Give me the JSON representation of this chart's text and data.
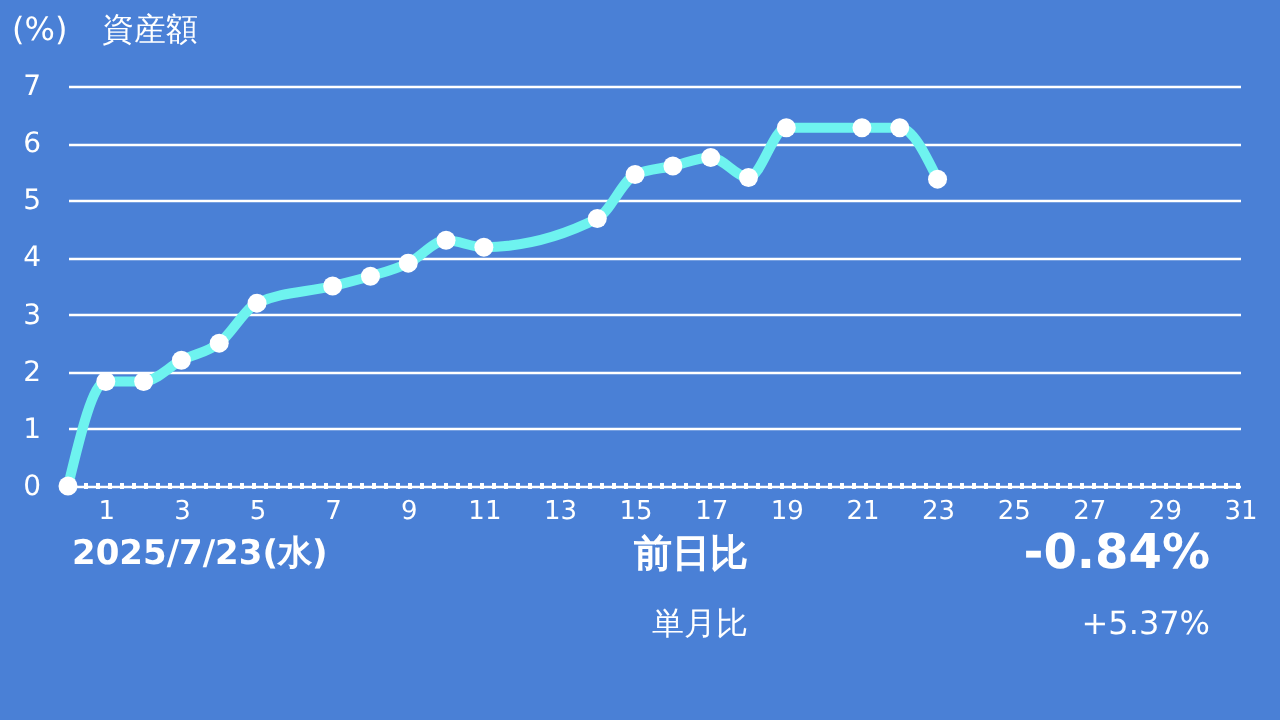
{
  "chart_data": {
    "type": "line",
    "title": "資産額",
    "ylabel": "(%)",
    "x": [
      0,
      1,
      2,
      3,
      4,
      5,
      7,
      8,
      9,
      10,
      11,
      14,
      15,
      16,
      17,
      18,
      19,
      21,
      22,
      23
    ],
    "series": [
      {
        "color": "#6ef3ef",
        "values": [
          0,
          1.83,
          1.83,
          2.2,
          2.5,
          3.2,
          3.5,
          3.67,
          3.9,
          4.3,
          4.18,
          4.68,
          5.45,
          5.6,
          5.75,
          5.4,
          6.27,
          6.27,
          6.27,
          5.37
        ]
      }
    ],
    "xlim": [
      0,
      31
    ],
    "xticks": [
      1,
      3,
      5,
      7,
      9,
      11,
      13,
      15,
      17,
      19,
      21,
      23,
      25,
      27,
      29,
      31
    ],
    "ylim": [
      0,
      7
    ],
    "yticks": [
      0,
      1,
      2,
      3,
      4,
      5,
      6,
      7
    ],
    "grid": "y",
    "marker": "circle",
    "line_style": "solid",
    "ref_lines": [
      {
        "axis": "y",
        "value": 0,
        "color": "#ffffff",
        "line_style": "dotted"
      }
    ],
    "annotations": [
      "2025/7/23(水)",
      "前日比",
      "-0.84%",
      "単月比",
      "+5.37%"
    ]
  }
}
